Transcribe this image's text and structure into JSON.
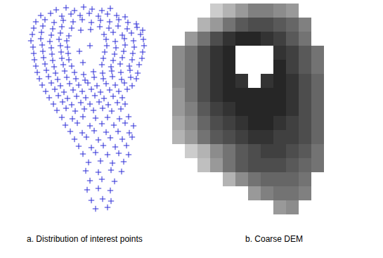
{
  "chart_data": [
    {
      "type": "scatter",
      "title": "a. Distribution of interest points",
      "color": "#2b2bd6",
      "marker": "cross",
      "tick_labels": false,
      "xlim": [
        0,
        200
      ],
      "ylim": [
        0,
        300
      ],
      "x": [
        62,
        76,
        88,
        101,
        113,
        127,
        139,
        40,
        54,
        70,
        83,
        96,
        109,
        122,
        135,
        148,
        160,
        33,
        46,
        59,
        72,
        86,
        99,
        112,
        125,
        138,
        151,
        164,
        176,
        30,
        43,
        57,
        70,
        84,
        97,
        111,
        124,
        137,
        150,
        163,
        177,
        185,
        28,
        41,
        55,
        68,
        80,
        130,
        143,
        156,
        169,
        182,
        26,
        40,
        53,
        66,
        77,
        133,
        146,
        159,
        172,
        186,
        29,
        42,
        55,
        68,
        78,
        134,
        147,
        160,
        173,
        187,
        30,
        43,
        56,
        69,
        79,
        131,
        145,
        158,
        171,
        185,
        31,
        44,
        57,
        70,
        80,
        129,
        143,
        156,
        170,
        184,
        33,
        46,
        59,
        72,
        84,
        127,
        140,
        153,
        166,
        180,
        35,
        48,
        61,
        74,
        88,
        101,
        115,
        128,
        141,
        154,
        167,
        178,
        38,
        51,
        64,
        77,
        90,
        103,
        116,
        129,
        142,
        155,
        168,
        176,
        42,
        55,
        68,
        81,
        94,
        107,
        120,
        133,
        146,
        159,
        170,
        47,
        60,
        73,
        86,
        99,
        112,
        125,
        138,
        151,
        163,
        52,
        65,
        78,
        91,
        104,
        117,
        130,
        143,
        156,
        58,
        71,
        84,
        97,
        110,
        123,
        136,
        149,
        160,
        63,
        76,
        89,
        102,
        115,
        128,
        141,
        154,
        95,
        110,
        100,
        70,
        85,
        100,
        118,
        135,
        152,
        165,
        75,
        92,
        110,
        127,
        144,
        160,
        172,
        82,
        99,
        116,
        133,
        150,
        166,
        88,
        105,
        122,
        139,
        156,
        170,
        94,
        112,
        129,
        146,
        162,
        100,
        118,
        135,
        151,
        165,
        108,
        125,
        142,
        158,
        104,
        122,
        140,
        155,
        110,
        127,
        145,
        106,
        122,
        139,
        112,
        128,
        140,
        118,
        135
      ],
      "values": [
        291,
        294,
        290,
        295,
        292,
        290,
        293,
        283,
        286,
        282,
        285,
        283,
        286,
        282,
        285,
        283,
        281,
        274,
        277,
        273,
        276,
        274,
        277,
        273,
        276,
        274,
        277,
        273,
        271,
        265,
        268,
        264,
        267,
        265,
        262,
        263,
        267,
        265,
        268,
        264,
        266,
        262,
        256,
        259,
        255,
        258,
        254,
        256,
        259,
        255,
        258,
        256,
        247,
        250,
        246,
        249,
        247,
        249,
        246,
        250,
        247,
        249,
        238,
        241,
        237,
        240,
        238,
        240,
        237,
        241,
        238,
        240,
        229,
        232,
        228,
        231,
        229,
        231,
        228,
        232,
        229,
        231,
        220,
        223,
        219,
        222,
        220,
        222,
        219,
        223,
        220,
        222,
        211,
        214,
        210,
        213,
        211,
        213,
        210,
        214,
        211,
        213,
        202,
        205,
        201,
        204,
        202,
        199,
        203,
        201,
        204,
        202,
        205,
        201,
        193,
        196,
        192,
        195,
        193,
        191,
        195,
        193,
        196,
        192,
        195,
        193,
        184,
        187,
        183,
        186,
        184,
        187,
        183,
        186,
        184,
        187,
        183,
        175,
        178,
        174,
        177,
        175,
        178,
        174,
        177,
        175,
        178,
        166,
        169,
        165,
        168,
        166,
        169,
        165,
        168,
        166,
        157,
        160,
        156,
        159,
        157,
        160,
        156,
        159,
        157,
        148,
        151,
        147,
        150,
        148,
        151,
        147,
        150,
        232,
        240,
        216,
        138,
        136,
        139,
        137,
        138,
        136,
        139,
        127,
        130,
        126,
        129,
        127,
        130,
        126,
        118,
        116,
        119,
        117,
        118,
        116,
        107,
        110,
        106,
        109,
        107,
        110,
        97,
        95,
        98,
        96,
        98,
        86,
        88,
        85,
        87,
        85,
        74,
        76,
        73,
        75,
        62,
        60,
        63,
        61,
        48,
        50,
        47,
        35,
        37,
        34,
        20,
        22,
        19,
        8,
        10
      ]
    },
    {
      "type": "heatmap",
      "title": "b. Coarse DEM",
      "tick_labels": false,
      "zlim": [
        0,
        100
      ],
      "cells": [
        [
          null,
          null,
          null,
          80,
          70,
          60,
          50,
          50,
          55,
          60,
          null,
          null
        ],
        [
          null,
          null,
          70,
          60,
          45,
          35,
          30,
          30,
          35,
          40,
          50,
          null
        ],
        [
          null,
          60,
          45,
          30,
          20,
          15,
          15,
          20,
          25,
          35,
          45,
          null
        ],
        [
          55,
          45,
          30,
          20,
          15,
          null,
          null,
          null,
          20,
          25,
          35,
          45
        ],
        [
          55,
          45,
          30,
          20,
          15,
          null,
          null,
          null,
          15,
          25,
          35,
          45
        ],
        [
          55,
          45,
          30,
          20,
          15,
          20,
          null,
          20,
          15,
          20,
          30,
          40
        ],
        [
          60,
          45,
          30,
          20,
          15,
          15,
          15,
          15,
          15,
          20,
          30,
          40
        ],
        [
          60,
          50,
          35,
          25,
          20,
          15,
          15,
          15,
          15,
          20,
          30,
          40
        ],
        [
          65,
          55,
          40,
          30,
          25,
          20,
          15,
          15,
          20,
          25,
          30,
          40
        ],
        [
          70,
          60,
          45,
          35,
          30,
          25,
          20,
          20,
          25,
          25,
          30,
          40
        ],
        [
          null,
          80,
          70,
          55,
          45,
          35,
          30,
          25,
          25,
          30,
          35,
          45
        ],
        [
          null,
          null,
          75,
          60,
          45,
          35,
          30,
          30,
          30,
          35,
          40,
          45
        ],
        [
          null,
          null,
          null,
          null,
          70,
          55,
          45,
          40,
          40,
          40,
          45,
          null
        ],
        [
          null,
          null,
          null,
          null,
          null,
          null,
          60,
          50,
          45,
          45,
          50,
          null
        ],
        [
          null,
          null,
          null,
          null,
          null,
          null,
          null,
          null,
          60,
          55,
          null,
          null
        ]
      ]
    }
  ]
}
